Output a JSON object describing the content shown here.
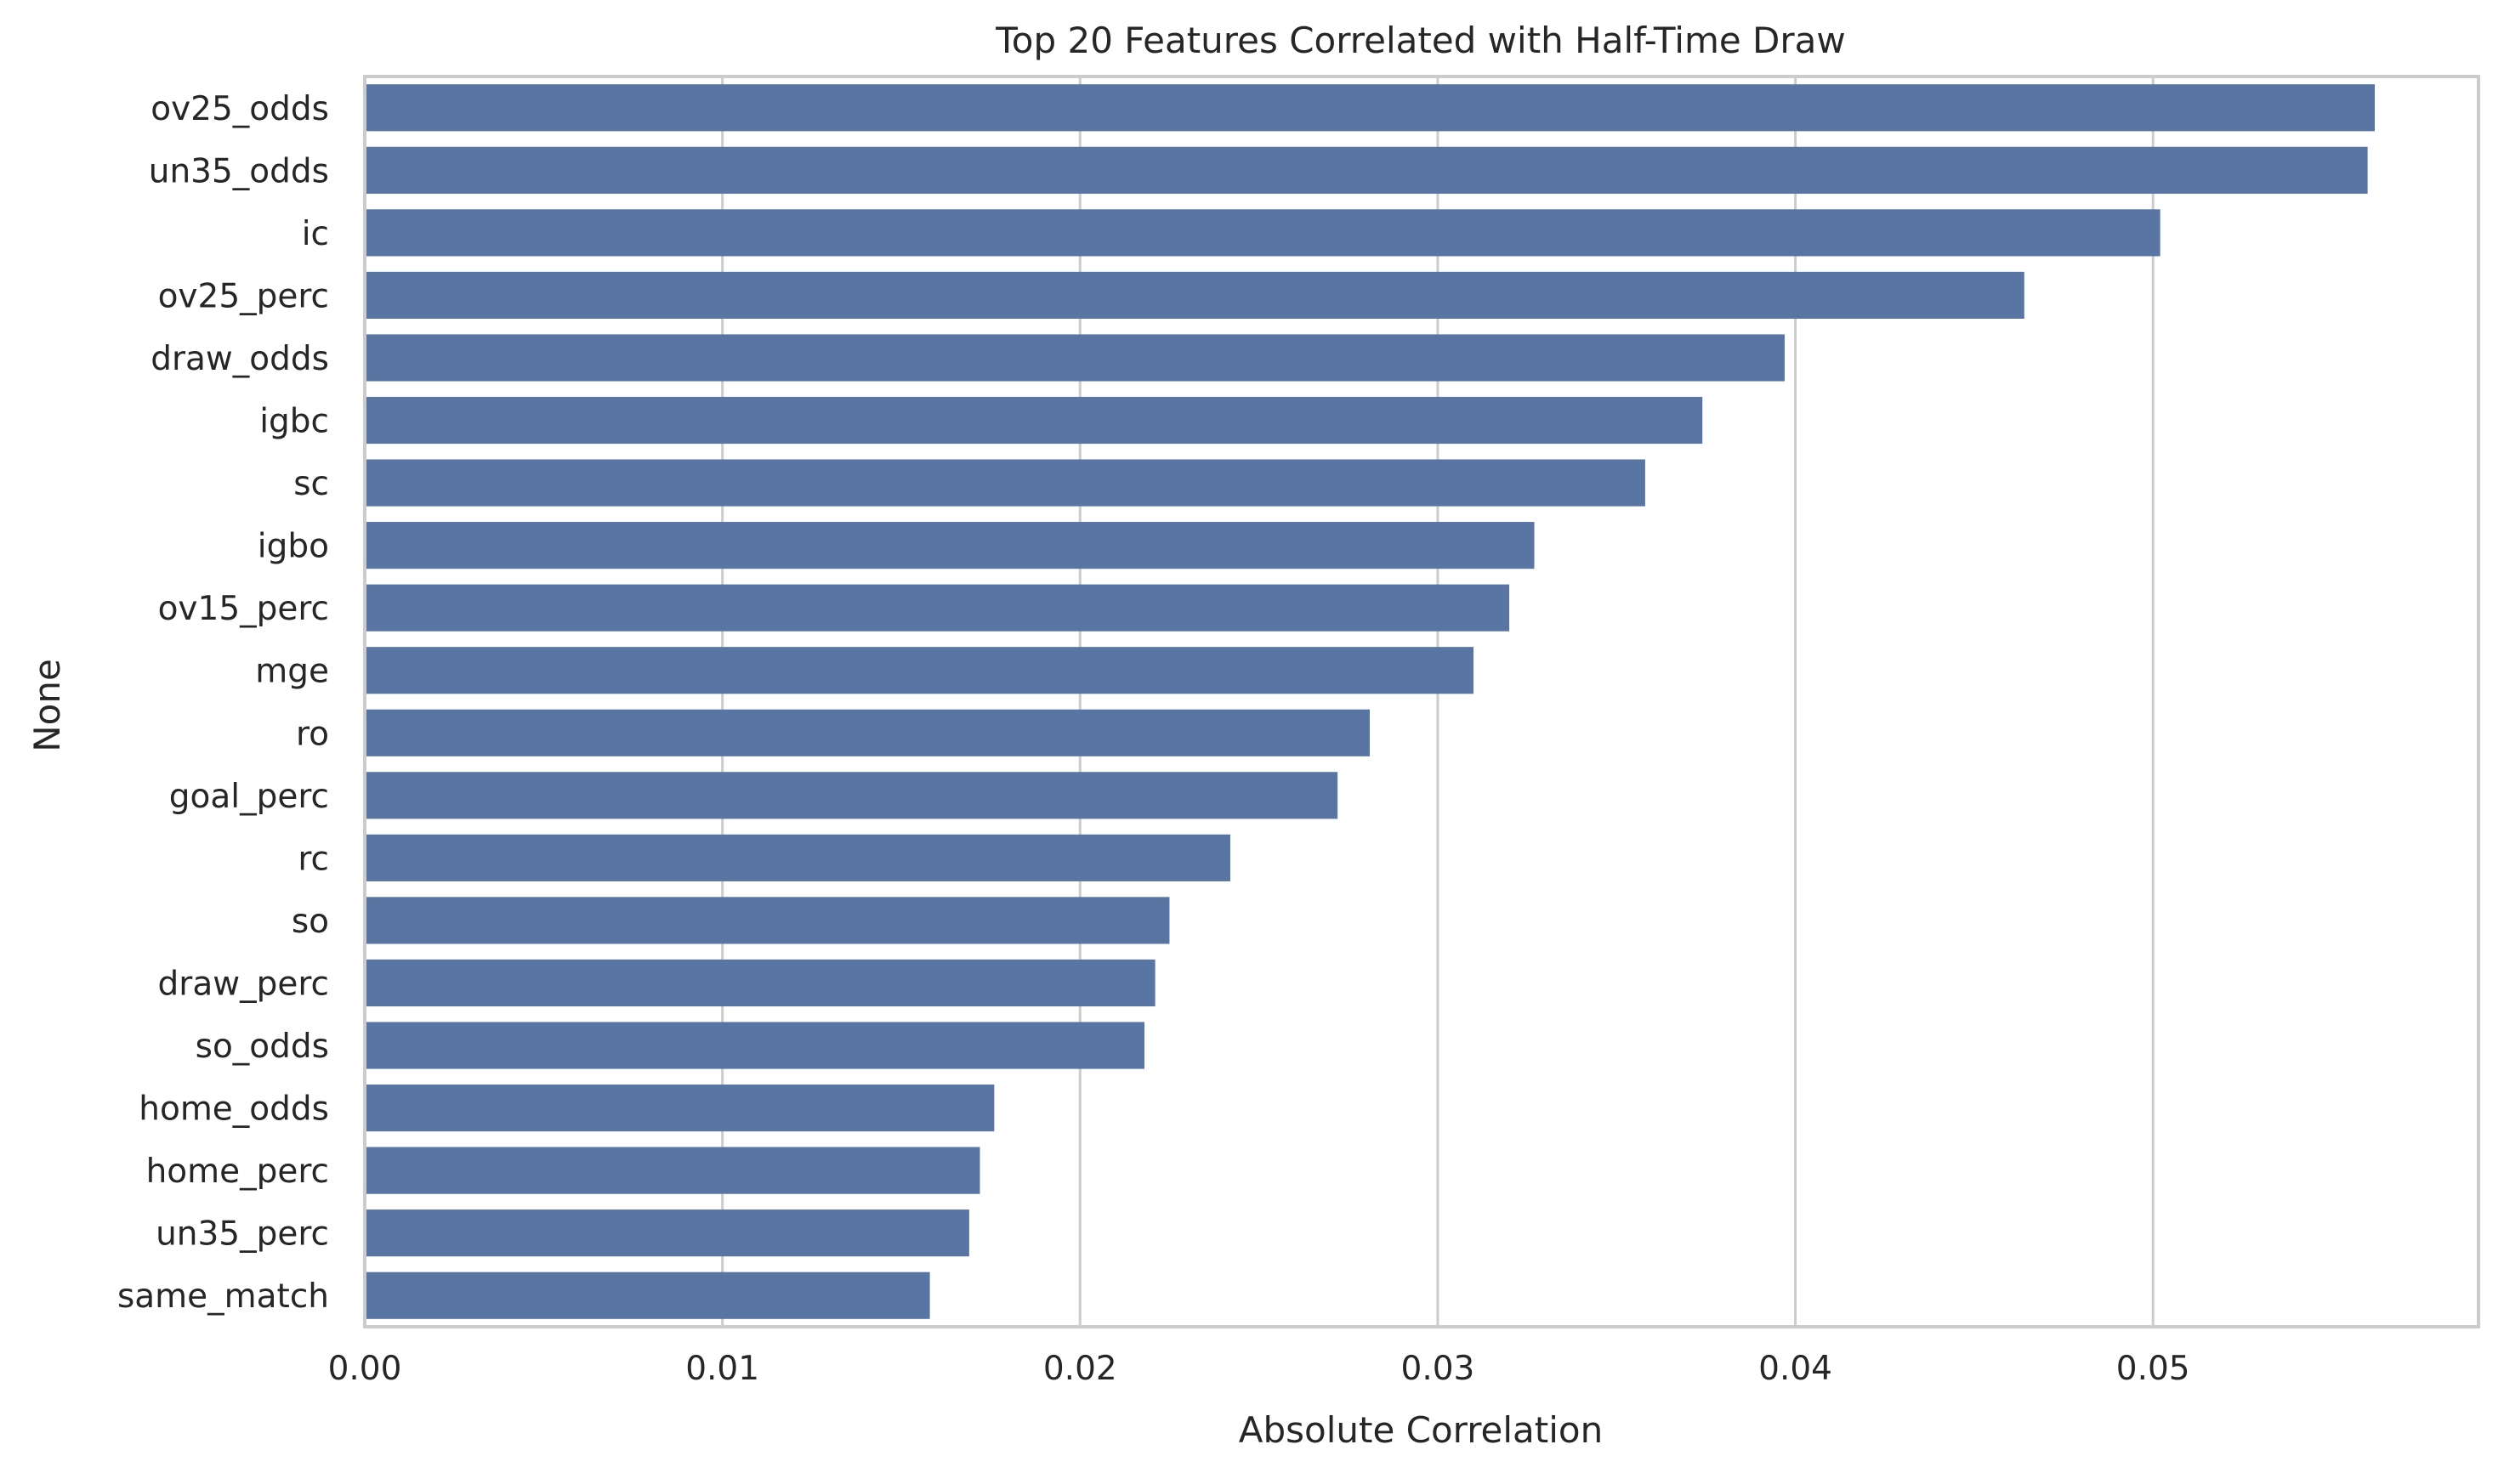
{
  "chart_data": {
    "type": "bar",
    "orientation": "horizontal",
    "title": "Top 20 Features Correlated with Half-Time Draw",
    "xlabel": "Absolute Correlation",
    "ylabel": "None",
    "xlim": [
      0,
      0.0591
    ],
    "xticks": [
      "0.00",
      "0.01",
      "0.02",
      "0.03",
      "0.04",
      "0.05"
    ],
    "grid": true,
    "bar_color": "#5975a4",
    "grid_color": "#cccccc",
    "categories": [
      "ov25_odds",
      "un35_odds",
      "ic",
      "ov25_perc",
      "draw_odds",
      "igbc",
      "sc",
      "igbo",
      "ov15_perc",
      "mge",
      "ro",
      "goal_perc",
      "rc",
      "so",
      "draw_perc",
      "so_odds",
      "home_odds",
      "home_perc",
      "un35_perc",
      "same_match"
    ],
    "values": [
      0.0562,
      0.056,
      0.0502,
      0.0464,
      0.0397,
      0.0374,
      0.0358,
      0.0327,
      0.032,
      0.031,
      0.0281,
      0.0272,
      0.0242,
      0.0225,
      0.0221,
      0.0218,
      0.0176,
      0.0172,
      0.0169,
      0.0158
    ]
  }
}
